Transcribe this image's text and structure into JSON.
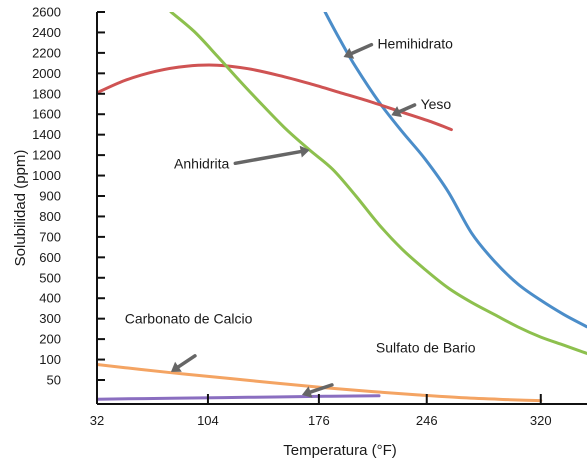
{
  "chart_data": {
    "type": "line",
    "title": "",
    "xlabel": "Temperatura (°F)",
    "ylabel": "Solubilidad (ppm)",
    "xlim": [
      32,
      350
    ],
    "ylim": [
      0,
      2600
    ],
    "x_ticks": [
      32,
      104,
      176,
      246,
      320
    ],
    "y_ticks": [
      50,
      100,
      200,
      300,
      400,
      500,
      600,
      700,
      800,
      900,
      1000,
      1200,
      1400,
      1600,
      1800,
      2000,
      2200,
      2400,
      2600
    ],
    "grid": false,
    "legend": "none",
    "series": [
      {
        "name": "Hemihidrato",
        "color": "#4b8dc9",
        "points": [
          [
            180,
            2600
          ],
          [
            190,
            2320
          ],
          [
            200,
            2060
          ],
          [
            215,
            1720
          ],
          [
            230,
            1430
          ],
          [
            245,
            1160
          ],
          [
            260,
            920
          ],
          [
            275,
            720
          ],
          [
            290,
            580
          ],
          [
            305,
            470
          ],
          [
            320,
            390
          ],
          [
            335,
            320
          ],
          [
            350,
            260
          ]
        ]
      },
      {
        "name": "Yeso",
        "color": "#cf5353",
        "points": [
          [
            32,
            1810
          ],
          [
            50,
            1930
          ],
          [
            70,
            2020
          ],
          [
            90,
            2070
          ],
          [
            110,
            2080
          ],
          [
            130,
            2045
          ],
          [
            150,
            1980
          ],
          [
            170,
            1900
          ],
          [
            190,
            1810
          ],
          [
            210,
            1720
          ],
          [
            230,
            1620
          ],
          [
            250,
            1520
          ],
          [
            262,
            1450
          ]
        ]
      },
      {
        "name": "Anhidrita",
        "color": "#8dc04e",
        "points": [
          [
            80,
            2600
          ],
          [
            95,
            2410
          ],
          [
            110,
            2170
          ],
          [
            125,
            1920
          ],
          [
            140,
            1680
          ],
          [
            155,
            1450
          ],
          [
            170,
            1250
          ],
          [
            185,
            1060
          ],
          [
            200,
            900
          ],
          [
            215,
            760
          ],
          [
            230,
            640
          ],
          [
            245,
            540
          ],
          [
            260,
            450
          ],
          [
            275,
            380
          ],
          [
            290,
            320
          ],
          [
            305,
            260
          ],
          [
            320,
            210
          ],
          [
            335,
            170
          ],
          [
            350,
            130
          ]
        ]
      },
      {
        "name": "Carbonato de Calcio",
        "color": "#f4a463",
        "points": [
          [
            32,
            88
          ],
          [
            60,
            76
          ],
          [
            90,
            64
          ],
          [
            120,
            53
          ],
          [
            150,
            43
          ],
          [
            180,
            34
          ],
          [
            210,
            26
          ],
          [
            240,
            19
          ],
          [
            270,
            13
          ],
          [
            300,
            9
          ],
          [
            320,
            7
          ]
        ]
      },
      {
        "name": "Sulfato de Bario",
        "color": "#8a6ec0",
        "points": [
          [
            32,
            10
          ],
          [
            80,
            12
          ],
          [
            130,
            14
          ],
          [
            180,
            16
          ],
          [
            215,
            17
          ]
        ]
      }
    ],
    "annotations": [
      {
        "text": "Hemihidrato",
        "x": 214,
        "y": 2290,
        "arrow_to": [
          192,
          2160
        ]
      },
      {
        "text": "Yeso",
        "x": 242,
        "y": 1700,
        "arrow_to": [
          223,
          1590
        ]
      },
      {
        "text": "Anhidrita",
        "x": 82,
        "y": 1120,
        "arrow_to": [
          170,
          1250
        ]
      },
      {
        "text": "Carbonato de Calcio",
        "x": 50,
        "y": 300,
        "arrow_to": [
          80,
          70
        ]
      },
      {
        "text": "Sulfato de Bario",
        "x": 213,
        "y": 160,
        "arrow_to": [
          165,
          19
        ]
      }
    ]
  }
}
